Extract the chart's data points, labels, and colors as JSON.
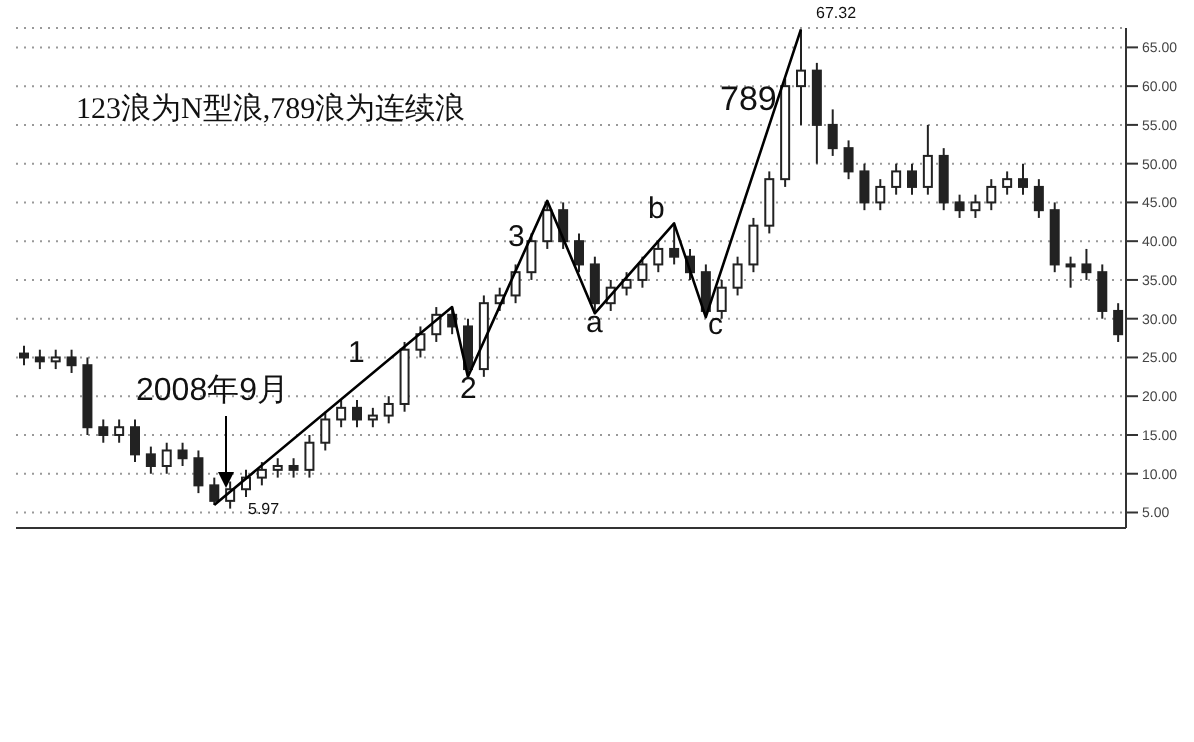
{
  "chart_data": {
    "type": "candlestick",
    "color": "#222222",
    "categories": [
      null,
      null,
      null,
      null,
      null,
      null,
      null,
      null,
      null,
      null,
      null,
      null,
      null,
      null,
      null,
      null,
      null,
      null,
      null,
      null,
      null,
      null,
      null,
      null,
      null,
      null,
      null,
      null,
      null,
      null,
      null,
      null,
      null,
      null,
      null,
      null,
      null,
      null,
      null,
      null,
      null,
      null,
      null,
      null,
      null,
      null,
      null,
      null,
      null,
      null,
      null,
      null,
      null,
      null,
      null,
      null,
      null,
      null,
      null,
      null,
      null,
      null,
      null,
      null,
      null,
      null,
      null,
      null,
      null,
      null
    ],
    "ohlc": [
      [
        25.5,
        26.5,
        24,
        25
      ],
      [
        25,
        26,
        23.5,
        24.5
      ],
      [
        24.5,
        26,
        23.5,
        25
      ],
      [
        25,
        26,
        23,
        24
      ],
      [
        24,
        25,
        15,
        16
      ],
      [
        16,
        17,
        14,
        15
      ],
      [
        15,
        17,
        14,
        16
      ],
      [
        16,
        17,
        11.5,
        12.5
      ],
      [
        12.5,
        13.5,
        10,
        11
      ],
      [
        11,
        14,
        10,
        13
      ],
      [
        13,
        14,
        11,
        12
      ],
      [
        12,
        13,
        7.5,
        8.5
      ],
      [
        8.5,
        9.5,
        5.97,
        6.5
      ],
      [
        6.5,
        9,
        5.5,
        8
      ],
      [
        8,
        10.5,
        7,
        9.5
      ],
      [
        9.5,
        11.5,
        8.5,
        10.5
      ],
      [
        10.5,
        12,
        9.5,
        11
      ],
      [
        11,
        12,
        9.5,
        10.5
      ],
      [
        10.5,
        15,
        9.5,
        14
      ],
      [
        14,
        18,
        13,
        17
      ],
      [
        17,
        19.5,
        16,
        18.5
      ],
      [
        18.5,
        19.5,
        16,
        17
      ],
      [
        17,
        18.5,
        16,
        17.5
      ],
      [
        17.5,
        20,
        16.5,
        19
      ],
      [
        19,
        27,
        18,
        26
      ],
      [
        26,
        29,
        25,
        28
      ],
      [
        28,
        31.5,
        27,
        30.5
      ],
      [
        30.5,
        31.5,
        28,
        29
      ],
      [
        29,
        30,
        22.5,
        23.5
      ],
      [
        23.5,
        33,
        22.5,
        32
      ],
      [
        32,
        34,
        31,
        33
      ],
      [
        33,
        37,
        32,
        36
      ],
      [
        36,
        41,
        35,
        40
      ],
      [
        40,
        45.2,
        39,
        44
      ],
      [
        44,
        45,
        39,
        40
      ],
      [
        40,
        41,
        36,
        37
      ],
      [
        37,
        38,
        30.7,
        32
      ],
      [
        32,
        35,
        31,
        34
      ],
      [
        34,
        36,
        33,
        35
      ],
      [
        35,
        38,
        34,
        37
      ],
      [
        37,
        40,
        36,
        39
      ],
      [
        39,
        42.3,
        37,
        38
      ],
      [
        38,
        39,
        35,
        36
      ],
      [
        36,
        37,
        30.2,
        31
      ],
      [
        31,
        35,
        30,
        34
      ],
      [
        34,
        38,
        33,
        37
      ],
      [
        37,
        43,
        36,
        42
      ],
      [
        42,
        49,
        41,
        48
      ],
      [
        48,
        61,
        47,
        60
      ],
      [
        60,
        67.32,
        55,
        62
      ],
      [
        62,
        63,
        50,
        55
      ],
      [
        55,
        57,
        51,
        52
      ],
      [
        52,
        53,
        48,
        49
      ],
      [
        49,
        50,
        44,
        45
      ],
      [
        45,
        48,
        44,
        47
      ],
      [
        47,
        50,
        46,
        49
      ],
      [
        49,
        50,
        46,
        47
      ],
      [
        47,
        55,
        46,
        51
      ],
      [
        51,
        52,
        44,
        45
      ],
      [
        45,
        46,
        43,
        44
      ],
      [
        44,
        46,
        43,
        45
      ],
      [
        45,
        48,
        44,
        47
      ],
      [
        47,
        49,
        46,
        48
      ],
      [
        48,
        50,
        46,
        47
      ],
      [
        47,
        48,
        43,
        44
      ],
      [
        44,
        45,
        36,
        37
      ],
      [
        37,
        38,
        34,
        37
      ],
      [
        37,
        39,
        35,
        36
      ],
      [
        36,
        37,
        30,
        31
      ],
      [
        31,
        32,
        27,
        28
      ]
    ],
    "series": [
      {
        "type": "line",
        "color": "#000000",
        "values": [
          null,
          null,
          null,
          null,
          null,
          null,
          null,
          null,
          null,
          null,
          null,
          null,
          5.97,
          null,
          null,
          null,
          null,
          null,
          null,
          null,
          null,
          null,
          null,
          null,
          null,
          null,
          null,
          31.5,
          22.5,
          null,
          null,
          null,
          null,
          45.2,
          null,
          null,
          30.7,
          null,
          null,
          null,
          null,
          42.3,
          null,
          30.2,
          null,
          null,
          null,
          null,
          null,
          67.32,
          null,
          null,
          null,
          null,
          null,
          null,
          null,
          null,
          null,
          null,
          null,
          null,
          null,
          null,
          null,
          null,
          null,
          null,
          null,
          null
        ]
      }
    ],
    "ylim": [
      3,
      67.5
    ],
    "yticks": [
      {
        "value": 5,
        "label": "5.00"
      },
      {
        "value": 10,
        "label": "10.00"
      },
      {
        "value": 15,
        "label": "15.00"
      },
      {
        "value": 20,
        "label": "20.00"
      },
      {
        "value": 25,
        "label": "25.00"
      },
      {
        "value": 30,
        "label": "30.00"
      },
      {
        "value": 35,
        "label": "35.00"
      },
      {
        "value": 40,
        "label": "40.00"
      },
      {
        "value": 45,
        "label": "45.00"
      },
      {
        "value": 50,
        "label": "50.00"
      },
      {
        "value": 55,
        "label": "55.00"
      },
      {
        "value": 60,
        "label": "60.00"
      },
      {
        "value": 65,
        "label": "65.00"
      }
    ],
    "grid": "y",
    "tick_labels": "y",
    "annotations": [
      "123浪为N型浪,789浪为连续浪",
      "2008年9月",
      "1",
      "2",
      "3",
      "a",
      "b",
      "c",
      "789",
      "67.32",
      "5.97"
    ]
  }
}
